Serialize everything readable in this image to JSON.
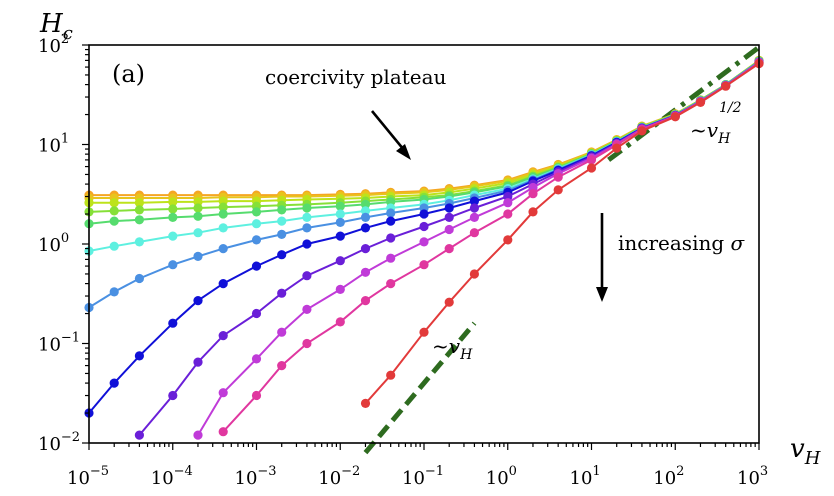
{
  "chart_data": {
    "type": "line",
    "panel_label": "(a)",
    "ylabel_main": "H",
    "ylabel_sub": "c",
    "xlabel_main": "v",
    "xlabel_sub": "H",
    "xscale": "log",
    "yscale": "log",
    "xlim": [
      1e-05,
      1000
    ],
    "ylim": [
      0.01,
      100
    ],
    "x_ticks": [
      {
        "base": "10",
        "exp": "−5",
        "value": 1e-05
      },
      {
        "base": "10",
        "exp": "−4",
        "value": 0.0001
      },
      {
        "base": "10",
        "exp": "−3",
        "value": 0.001
      },
      {
        "base": "10",
        "exp": "−2",
        "value": 0.01
      },
      {
        "base": "10",
        "exp": "−1",
        "value": 0.1
      },
      {
        "base": "10",
        "exp": "0",
        "value": 1
      },
      {
        "base": "10",
        "exp": "1",
        "value": 10
      },
      {
        "base": "10",
        "exp": "2",
        "value": 100
      },
      {
        "base": "10",
        "exp": "3",
        "value": 1000
      }
    ],
    "y_ticks": [
      {
        "base": "10",
        "exp": "−2",
        "value": 0.01
      },
      {
        "base": "10",
        "exp": "−1",
        "value": 0.1
      },
      {
        "base": "10",
        "exp": "0",
        "value": 1
      },
      {
        "base": "10",
        "exp": "1",
        "value": 10
      },
      {
        "base": "10",
        "exp": "2",
        "value": 100
      }
    ],
    "annotations": {
      "plateau_text": "coercivity plateau",
      "increasing_main": "increasing ",
      "increasing_symbol": "σ",
      "slope_half_main": "~v",
      "slope_half_sub": "H",
      "slope_half_sup": "1/2",
      "slope_one_main": "~v",
      "slope_one_sub": "H"
    },
    "guides": [
      {
        "x": [
          16,
          1000
        ],
        "y": [
          7.0,
          95
        ],
        "style": "dash-dot",
        "color": "#2e6b1f"
      },
      {
        "x": [
          0.02,
          0.4
        ],
        "y": [
          0.008,
          0.16
        ],
        "style": "dashed",
        "color": "#2e6b1f"
      }
    ],
    "x_grid": [
      1e-05,
      2e-05,
      4e-05,
      0.0001,
      0.0002,
      0.0004,
      0.001,
      0.002,
      0.004,
      0.01,
      0.02,
      0.04,
      0.1,
      0.2,
      0.4,
      1,
      2,
      4,
      10,
      20,
      40,
      100,
      200,
      400,
      1000
    ],
    "series": [
      {
        "color": "#f5a623",
        "values": [
          3.1,
          3.1,
          3.1,
          3.1,
          3.1,
          3.1,
          3.1,
          3.1,
          3.1,
          3.15,
          3.2,
          3.3,
          3.4,
          3.6,
          3.9,
          4.4,
          5.3,
          6.3,
          8.4,
          11.2,
          15.3,
          20.3,
          28,
          40,
          70
        ]
      },
      {
        "color": "#e8c41c",
        "values": [
          2.9,
          2.9,
          2.9,
          2.9,
          2.9,
          2.95,
          2.95,
          3.0,
          3.0,
          3.05,
          3.1,
          3.2,
          3.3,
          3.5,
          3.8,
          4.3,
          5.2,
          6.2,
          8.3,
          11.1,
          15.2,
          20.2,
          28,
          40,
          70
        ]
      },
      {
        "color": "#bde31b",
        "values": [
          2.6,
          2.6,
          2.6,
          2.65,
          2.65,
          2.7,
          2.7,
          2.75,
          2.8,
          2.85,
          2.9,
          3.0,
          3.1,
          3.3,
          3.6,
          4.1,
          5.0,
          6.0,
          8.2,
          11.0,
          15.1,
          20.1,
          28,
          40,
          69
        ]
      },
      {
        "color": "#86e038",
        "values": [
          2.1,
          2.15,
          2.2,
          2.25,
          2.3,
          2.35,
          2.4,
          2.45,
          2.5,
          2.6,
          2.7,
          2.8,
          2.95,
          3.1,
          3.4,
          3.9,
          4.8,
          5.9,
          8.1,
          10.9,
          15.0,
          20.0,
          28,
          40,
          69
        ]
      },
      {
        "color": "#56dc6e",
        "values": [
          1.6,
          1.7,
          1.75,
          1.85,
          1.9,
          2.0,
          2.1,
          2.2,
          2.3,
          2.4,
          2.5,
          2.65,
          2.8,
          3.0,
          3.3,
          3.8,
          4.7,
          5.8,
          8.0,
          10.8,
          14.9,
          19.9,
          27.5,
          40,
          69
        ]
      },
      {
        "color": "#5ef0e0",
        "values": [
          0.85,
          0.95,
          1.05,
          1.2,
          1.3,
          1.45,
          1.6,
          1.7,
          1.85,
          2.0,
          2.15,
          2.3,
          2.5,
          2.75,
          3.1,
          3.6,
          4.5,
          5.7,
          7.9,
          10.7,
          14.8,
          19.8,
          27.5,
          39.5,
          68
        ]
      },
      {
        "color": "#4a90e2",
        "values": [
          0.23,
          0.33,
          0.45,
          0.62,
          0.75,
          0.9,
          1.1,
          1.25,
          1.45,
          1.65,
          1.85,
          2.05,
          2.3,
          2.55,
          2.9,
          3.45,
          4.4,
          5.6,
          7.8,
          10.6,
          14.7,
          19.7,
          27.5,
          39.5,
          68
        ]
      },
      {
        "color": "#1010d8",
        "values": [
          0.02,
          0.04,
          0.075,
          0.16,
          0.27,
          0.4,
          0.6,
          0.78,
          1.0,
          1.2,
          1.45,
          1.7,
          2.0,
          2.3,
          2.7,
          3.3,
          4.3,
          5.5,
          7.7,
          10.5,
          14.6,
          19.6,
          27,
          39,
          67
        ]
      },
      {
        "color": "#6a1fd8",
        "values": [
          null,
          null,
          0.012,
          0.03,
          0.065,
          0.12,
          0.2,
          0.32,
          0.48,
          0.68,
          0.9,
          1.15,
          1.5,
          1.85,
          2.3,
          3.0,
          4.0,
          5.3,
          7.5,
          10.3,
          14.5,
          19.5,
          27,
          39,
          67
        ]
      },
      {
        "color": "#c03bd8",
        "values": [
          null,
          null,
          null,
          null,
          0.012,
          0.032,
          0.07,
          0.13,
          0.22,
          0.35,
          0.52,
          0.72,
          1.05,
          1.4,
          1.85,
          2.6,
          3.7,
          5.1,
          7.3,
          10.1,
          14.3,
          19.4,
          27,
          39,
          67
        ]
      },
      {
        "color": "#e0379f",
        "values": [
          null,
          null,
          null,
          null,
          null,
          0.013,
          0.03,
          0.06,
          0.1,
          0.165,
          0.27,
          0.4,
          0.62,
          0.9,
          1.3,
          2.0,
          3.2,
          4.7,
          7.0,
          9.9,
          14.2,
          19.3,
          27,
          39,
          66
        ]
      },
      {
        "color": "#e23a3a",
        "values": [
          null,
          null,
          null,
          null,
          null,
          null,
          null,
          null,
          null,
          null,
          0.025,
          0.048,
          0.13,
          0.26,
          0.5,
          1.1,
          2.1,
          3.5,
          5.8,
          9.2,
          13.7,
          19.0,
          26.5,
          38.5,
          65
        ]
      }
    ]
  }
}
